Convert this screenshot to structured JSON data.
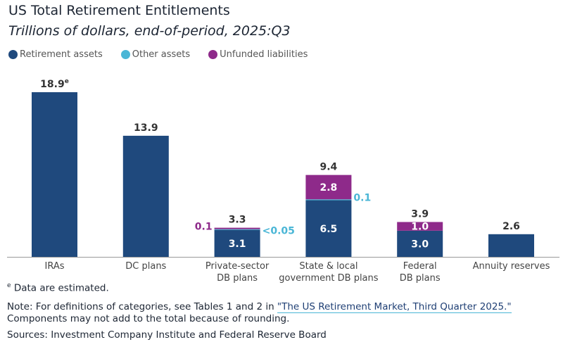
{
  "chart_data": {
    "type": "bar",
    "stacked": true,
    "title": "US Total Retirement Entitlements",
    "subtitle": "Trillions of dollars, end-of-period, 2025:Q3",
    "legend_position": "top-left",
    "grid": false,
    "ylim": [
      0,
      19
    ],
    "categories": [
      [
        "IRAs"
      ],
      [
        "DC plans"
      ],
      [
        "Private-sector",
        "DB plans"
      ],
      [
        "State & local",
        "government DB plans"
      ],
      [
        "Federal",
        "DB plans"
      ],
      [
        "Annuity reserves"
      ]
    ],
    "series": [
      {
        "name": "Retirement assets",
        "color": "#1f497d",
        "values": [
          18.9,
          13.9,
          3.1,
          6.5,
          3.0,
          2.6
        ],
        "labels": [
          "",
          "",
          "3.1",
          "6.5",
          "3.0",
          ""
        ]
      },
      {
        "name": "Other assets",
        "color": "#4ab6d6",
        "values": [
          0,
          0,
          0.05,
          0.1,
          0,
          0
        ],
        "labels": [
          "",
          "",
          "<0.05",
          "0.1",
          "",
          ""
        ]
      },
      {
        "name": "Unfunded liabilities",
        "color": "#8e2a8a",
        "values": [
          0,
          0,
          0.1,
          2.8,
          1.0,
          0
        ],
        "labels": [
          "",
          "",
          "0.1",
          "2.8",
          "1.0",
          ""
        ]
      }
    ],
    "totals": [
      "18.9",
      "13.9",
      "3.3",
      "9.4",
      "3.9",
      "2.6"
    ],
    "total_superscripts": [
      "e",
      "",
      "",
      "",
      "",
      ""
    ]
  },
  "footnotes": {
    "estimated_mark": "e",
    "estimated_text": " Data are estimated.",
    "note_prefix": "Note: For definitions of categories, see Tables 1 and 2 in ",
    "note_link": "\"The US Retirement Market, Third Quarter 2025.\"",
    "note_line2": "Components may not add to the total because of rounding.",
    "sources": "Sources: Investment Company Institute and Federal Reserve Board"
  }
}
